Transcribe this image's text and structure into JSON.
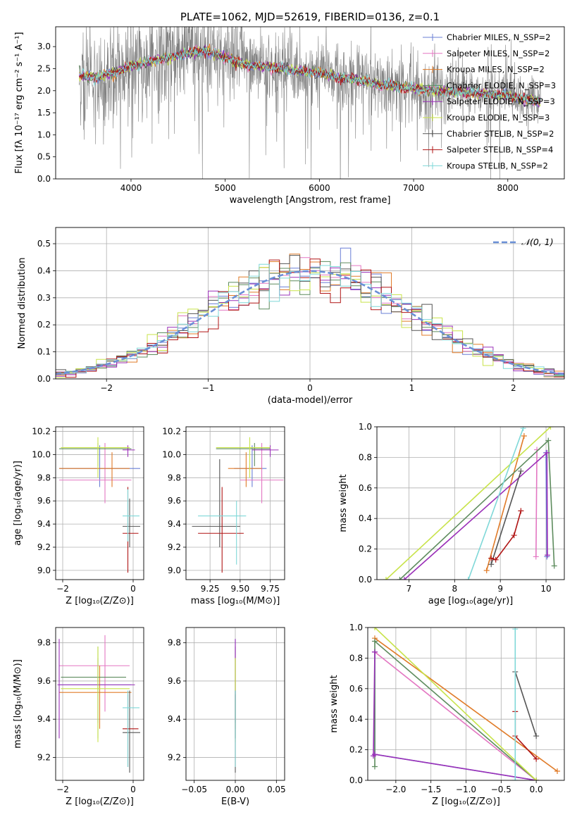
{
  "figure_title": "PLATE=1062, MJD=52619, FIBERID=0136, z=0.1",
  "series_colors": [
    "#6a7fd6",
    "#e377c2",
    "#e07b28",
    "#5e8c5e",
    "#9a30b8",
    "#c8e34a",
    "#555555",
    "#b01515",
    "#7fd8d8"
  ],
  "chart_data": [
    {
      "id": "spectrum",
      "type": "line",
      "title": "PLATE=1062, MJD=52619, FIBERID=0136, z=0.1",
      "xlabel": "wavelength [Angstrom, rest frame]",
      "ylabel": "Flux [fλ 10⁻¹⁷ erg cm⁻² s⁻¹ A⁻¹]",
      "xlim": [
        3200,
        8600
      ],
      "ylim": [
        0,
        3.45
      ],
      "xticks": [
        4000,
        5000,
        6000,
        7000,
        8000
      ],
      "yticks": [
        0.0,
        0.5,
        1.0,
        1.5,
        2.0,
        2.5,
        3.0
      ],
      "grid": false,
      "legend_location": "upper-right",
      "data_color": "#808080",
      "legend": [
        "Chabrier MILES, N_SSP=2",
        "Salpeter MILES, N_SSP=2",
        "Kroupa MILES, N_SSP=2",
        "Chabrier ELODIE, N_SSP=3",
        "Salpeter ELODIE, N_SSP=3",
        "Kroupa ELODIE, N_SSP=3",
        "Chabrier STELIB, N_SSP=2",
        "Salpeter STELIB, N_SSP=4",
        "Kroupa STELIB, N_SSP=2"
      ],
      "model_continuum": {
        "x": [
          3450,
          3600,
          3800,
          4000,
          4200,
          4400,
          4600,
          4800,
          5000,
          5200,
          5400,
          5600,
          5800,
          6000,
          6200,
          6400,
          6600,
          6800,
          7000,
          7200,
          7400,
          7600,
          7800,
          8000,
          8200,
          8350
        ],
        "y": [
          2.35,
          2.3,
          2.4,
          2.55,
          2.65,
          2.75,
          2.85,
          2.9,
          2.75,
          2.6,
          2.55,
          2.5,
          2.45,
          2.4,
          2.3,
          2.25,
          2.15,
          2.1,
          2.05,
          2.0,
          1.98,
          1.95,
          1.92,
          1.9,
          1.8,
          1.75
        ]
      }
    },
    {
      "id": "residuals",
      "type": "step",
      "xlabel": "(data-model)/error",
      "ylabel": "Normed distribution",
      "xlim": [
        -2.5,
        2.5
      ],
      "ylim": [
        0,
        0.56
      ],
      "xticks": [
        -2,
        -1,
        0,
        1,
        2
      ],
      "yticks": [
        0.0,
        0.1,
        0.2,
        0.3,
        0.4,
        0.5
      ],
      "grid": true,
      "legend_location": "upper-right",
      "gaussian_label": "𝒩(0, 1)",
      "bin_width": 0.1
    },
    {
      "id": "age-vs-Z",
      "type": "errorbar",
      "xlabel": "Z [log₁₀(Z/Z⊙)]",
      "ylabel": "age  [log₁₀(age/yr)]",
      "xlim": [
        -2.2,
        0.3
      ],
      "ylim": [
        8.92,
        10.24
      ],
      "xticks": [
        -2,
        0
      ],
      "yticks": [
        9.0,
        9.2,
        9.4,
        9.6,
        9.8,
        10.0,
        10.2
      ],
      "grid": true,
      "points": [
        {
          "x": -0.95,
          "y": 9.88,
          "x0": -2.1,
          "x1": 0.2,
          "y0": 9.72,
          "y1": 10.08
        },
        {
          "x": -0.8,
          "y": 9.78,
          "x0": -2.1,
          "x1": -0.05,
          "y0": 9.58,
          "y1": 10.1
        },
        {
          "x": -0.6,
          "y": 9.88,
          "x0": -2.1,
          "x1": -0.1,
          "y0": 9.72,
          "y1": 10.02
        },
        {
          "x": -1.0,
          "y": 10.05,
          "x0": -2.1,
          "x1": -0.05,
          "y0": 9.9,
          "y1": 10.1
        },
        {
          "x": -0.15,
          "y": 10.04,
          "x0": -0.3,
          "x1": 0.05,
          "y0": 9.98,
          "y1": 10.08
        },
        {
          "x": -1.0,
          "y": 10.06,
          "x0": -2.05,
          "x1": -0.1,
          "y0": 9.8,
          "y1": 10.15
        },
        {
          "x": -0.1,
          "y": 9.38,
          "x0": -0.3,
          "x1": 0.2,
          "y0": 9.2,
          "y1": 9.62
        },
        {
          "x": -0.15,
          "y": 9.32,
          "x0": -0.3,
          "x1": 0.15,
          "y0": 8.98,
          "y1": 9.72
        },
        {
          "x": -0.15,
          "y": 9.47,
          "x0": -0.3,
          "x1": 0.18,
          "y0": 9.25,
          "y1": 9.7
        }
      ]
    },
    {
      "id": "age-vs-mass",
      "type": "errorbar",
      "xlabel": "mass [log₁₀(M/M⊙)]",
      "ylabel": "",
      "xlim": [
        9.05,
        9.87
      ],
      "ylim": [
        8.92,
        10.24
      ],
      "xticks": [
        9.25,
        9.5,
        9.75
      ],
      "yticks": [
        9.0,
        9.2,
        9.4,
        9.6,
        9.8,
        10.0,
        10.2
      ],
      "grid": true,
      "points": [
        {
          "x": 9.6,
          "y": 9.88,
          "x0": 9.45,
          "x1": 9.72,
          "y0": 9.72,
          "y1": 10.08
        },
        {
          "x": 9.68,
          "y": 9.78,
          "x0": 9.5,
          "x1": 9.86,
          "y0": 9.58,
          "y1": 10.1
        },
        {
          "x": 9.55,
          "y": 9.88,
          "x0": 9.4,
          "x1": 9.68,
          "y0": 9.72,
          "y1": 10.02
        },
        {
          "x": 9.62,
          "y": 10.05,
          "x0": 9.3,
          "x1": 9.75,
          "y0": 9.9,
          "y1": 10.1
        },
        {
          "x": 9.75,
          "y": 10.04,
          "x0": 9.6,
          "x1": 9.82,
          "y0": 9.98,
          "y1": 10.08
        },
        {
          "x": 9.58,
          "y": 10.06,
          "x0": 9.3,
          "x1": 9.75,
          "y0": 9.8,
          "y1": 10.15
        },
        {
          "x": 9.33,
          "y": 9.38,
          "x0": 9.1,
          "x1": 9.5,
          "y0": 9.2,
          "y1": 9.96
        },
        {
          "x": 9.35,
          "y": 9.32,
          "x0": 9.15,
          "x1": 9.53,
          "y0": 8.98,
          "y1": 9.72
        },
        {
          "x": 9.47,
          "y": 9.47,
          "x0": 9.15,
          "x1": 9.55,
          "y0": 9.05,
          "y1": 9.6
        }
      ]
    },
    {
      "id": "weight-vs-age",
      "type": "line",
      "xlabel": "age  [log₁₀(age/yr)]",
      "ylabel": "mass weight",
      "xlim": [
        6.3,
        10.4
      ],
      "ylim": [
        0,
        1.0
      ],
      "xticks": [
        7,
        8,
        9,
        10
      ],
      "yticks": [
        0.0,
        0.2,
        0.4,
        0.6,
        0.8,
        1.0
      ],
      "grid": true,
      "series": [
        {
          "x": [
            10.0,
            10.02
          ],
          "y": [
            0.83,
            0.15
          ]
        },
        {
          "x": [
            9.8,
            9.78
          ],
          "y": [
            0.85,
            0.15
          ]
        },
        {
          "x": [
            8.7,
            9.52
          ],
          "y": [
            0.06,
            0.94
          ]
        },
        {
          "x": [
            6.8,
            10.05,
            10.18
          ],
          "y": [
            0.0,
            0.91,
            0.09
          ]
        },
        {
          "x": [
            6.9,
            10.02,
            10.03
          ],
          "y": [
            0.0,
            0.83,
            0.16
          ]
        },
        {
          "x": [
            6.5,
            10.1
          ],
          "y": [
            0.0,
            1.0
          ]
        },
        {
          "x": [
            8.8,
            9.45
          ],
          "y": [
            0.1,
            0.71
          ]
        },
        {
          "x": [
            8.8,
            8.9,
            9.3,
            9.45
          ],
          "y": [
            0.14,
            0.13,
            0.29,
            0.45
          ]
        },
        {
          "x": [
            8.3,
            9.5
          ],
          "y": [
            0.0,
            0.99
          ]
        }
      ]
    },
    {
      "id": "mass-vs-Z",
      "type": "errorbar",
      "xlabel": "Z [log₁₀(Z/Z⊙)]",
      "ylabel": "mass [log₁₀(M/M⊙)]",
      "xlim": [
        -2.2,
        0.3
      ],
      "ylim": [
        9.08,
        9.88
      ],
      "xticks": [
        -2,
        0
      ],
      "yticks": [
        9.2,
        9.4,
        9.6,
        9.8
      ],
      "grid": true,
      "points": [
        {
          "x": -1.0,
          "y": 9.58,
          "x0": -2.1,
          "x1": -0.05,
          "y0": 9.38,
          "y1": 9.72
        },
        {
          "x": -0.8,
          "y": 9.68,
          "x0": -2.1,
          "x1": -0.1,
          "y0": 9.44,
          "y1": 9.84
        },
        {
          "x": -0.95,
          "y": 9.54,
          "x0": -2.1,
          "x1": -0.05,
          "y0": 9.35,
          "y1": 9.68
        },
        {
          "x": -1.0,
          "y": 9.62,
          "x0": -2.05,
          "x1": -0.2,
          "y0": 9.3,
          "y1": 9.78
        },
        {
          "x": -2.1,
          "y": 9.58,
          "x0": -2.15,
          "x1": 0.05,
          "y0": 9.3,
          "y1": 9.82
        },
        {
          "x": -1.0,
          "y": 9.56,
          "x0": -2.05,
          "x1": -0.1,
          "y0": 9.28,
          "y1": 9.78
        },
        {
          "x": -0.1,
          "y": 9.33,
          "x0": -0.3,
          "x1": 0.2,
          "y0": 9.12,
          "y1": 9.55
        },
        {
          "x": -0.15,
          "y": 9.35,
          "x0": -0.3,
          "x1": 0.15,
          "y0": 9.15,
          "y1": 9.53
        },
        {
          "x": -0.15,
          "y": 9.46,
          "x0": -0.3,
          "x1": 0.18,
          "y0": 9.15,
          "y1": 9.55
        }
      ]
    },
    {
      "id": "mass-vs-ebv",
      "type": "errorbar",
      "xlabel": "E(B-V)",
      "ylabel": "",
      "xlim": [
        -0.06,
        0.06
      ],
      "ylim": [
        9.08,
        9.88
      ],
      "xticks": [
        -0.05,
        0.0,
        0.05
      ],
      "yticks": [
        9.2,
        9.4,
        9.6,
        9.8
      ],
      "grid": true,
      "points": [
        {
          "x": 0.0,
          "y": 9.6,
          "x0": 0.0,
          "x1": 0.0,
          "y0": 9.38,
          "y1": 9.82
        },
        {
          "x": 0.0,
          "y": 9.68,
          "x0": 0.0,
          "x1": 0.0,
          "y0": 9.5,
          "y1": 9.78
        },
        {
          "x": 0.0,
          "y": 9.54,
          "x0": 0.0,
          "x1": 0.0,
          "y0": 9.35,
          "y1": 9.72
        },
        {
          "x": 0.0,
          "y": 9.62,
          "x0": 0.0,
          "x1": 0.0,
          "y0": 9.3,
          "y1": 9.78
        },
        {
          "x": 0.0,
          "y": 9.58,
          "x0": 0.0,
          "x1": 0.0,
          "y0": 9.3,
          "y1": 9.82
        },
        {
          "x": 0.0,
          "y": 9.56,
          "x0": 0.0,
          "x1": 0.0,
          "y0": 9.28,
          "y1": 9.72
        },
        {
          "x": 0.0,
          "y": 9.33,
          "x0": 0.0,
          "x1": 0.0,
          "y0": 9.12,
          "y1": 9.55
        },
        {
          "x": 0.0,
          "y": 9.35,
          "x0": 0.0,
          "x1": 0.0,
          "y0": 9.15,
          "y1": 9.53
        },
        {
          "x": 0.0,
          "y": 9.46,
          "x0": 0.0,
          "x1": 0.0,
          "y0": 9.15,
          "y1": 9.55
        }
      ]
    },
    {
      "id": "weight-vs-Z",
      "type": "line",
      "xlabel": "Z [log₁₀(Z/Z⊙)]",
      "ylabel": "mass weight",
      "xlim": [
        -2.4,
        0.4
      ],
      "ylim": [
        0,
        1.0
      ],
      "xticks": [
        -2.0,
        -1.5,
        -1.0,
        -0.5,
        0.0
      ],
      "yticks": [
        0.0,
        0.2,
        0.4,
        0.6,
        0.8,
        1.0
      ],
      "grid": true,
      "series": [
        {
          "x": [
            -2.3,
            -2.3,
            0.0
          ],
          "y": [
            0.84,
            0.17,
            0.0
          ]
        },
        {
          "x": [
            -2.3,
            0.0
          ],
          "y": [
            0.84,
            0.0
          ]
        },
        {
          "x": [
            -2.3,
            0.3
          ],
          "y": [
            0.93,
            0.06
          ]
        },
        {
          "x": [
            -2.3,
            -2.3,
            0.0
          ],
          "y": [
            0.09,
            0.91,
            0.0
          ]
        },
        {
          "x": [
            -2.3,
            -2.32,
            -2.3,
            0.0
          ],
          "y": [
            0.84,
            0.16,
            0.17,
            0.0
          ]
        },
        {
          "x": [
            -2.3,
            0.0
          ],
          "y": [
            1.0,
            0.0
          ]
        },
        {
          "x": [
            -0.3,
            0.0
          ],
          "y": [
            0.71,
            0.29
          ]
        },
        {
          "x": [
            -0.3,
            -0.3,
            0.0
          ],
          "y": [
            0.45,
            0.29,
            0.14
          ]
        },
        {
          "x": [
            -0.3,
            -0.3
          ],
          "y": [
            0.99,
            0.0
          ]
        }
      ]
    }
  ]
}
